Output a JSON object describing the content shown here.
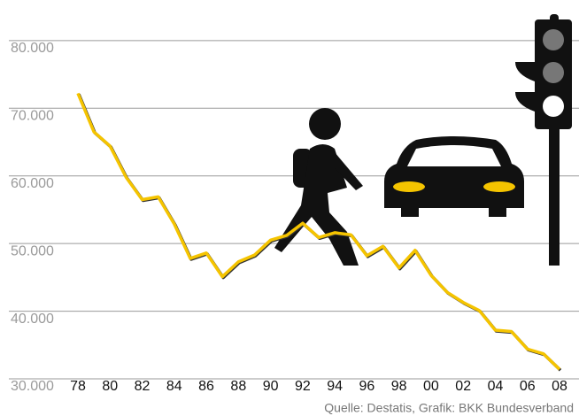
{
  "chart_data": {
    "type": "line",
    "categories": [
      "78",
      null,
      "80",
      null,
      "82",
      null,
      "84",
      null,
      "86",
      null,
      "88",
      null,
      "90",
      null,
      "92",
      null,
      "94",
      null,
      "96",
      null,
      "98",
      null,
      "00",
      null,
      "02",
      null,
      "04",
      null,
      "06",
      null,
      "08"
    ],
    "values": [
      72200,
      66500,
      64400,
      59800,
      56500,
      56900,
      52900,
      47800,
      48600,
      45100,
      47300,
      48300,
      50500,
      51200,
      53000,
      50900,
      51600,
      51300,
      48200,
      49600,
      46400,
      49000,
      45300,
      42800,
      41300,
      40100,
      37200,
      37000,
      34400,
      33700,
      31400
    ],
    "color": "#f5c400",
    "ylim": [
      30000,
      86000
    ],
    "yticks": [
      {
        "value": 30000,
        "label": "30.000"
      },
      {
        "value": 40000,
        "label": "40.000"
      },
      {
        "value": 50000,
        "label": "50.000"
      },
      {
        "value": 60000,
        "label": "60.000"
      },
      {
        "value": 70000,
        "label": "70.000"
      },
      {
        "value": 80000,
        "label": "80.000"
      }
    ],
    "grid": true,
    "source": "Quelle: Destatis, Grafik: BKK Bundesverband"
  }
}
